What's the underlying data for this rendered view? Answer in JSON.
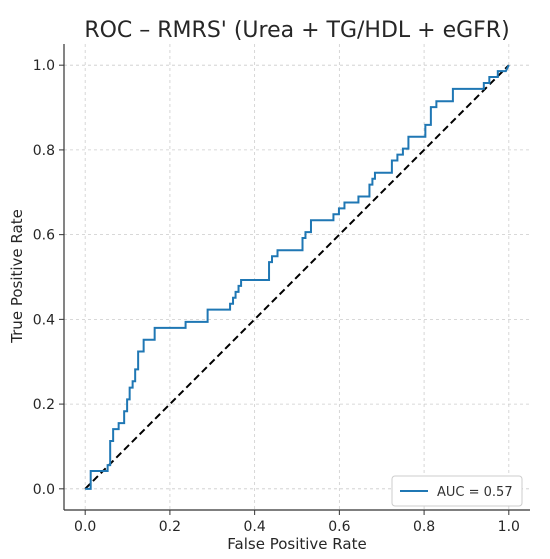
{
  "chart_data": {
    "type": "line",
    "title": "ROC – RMRS' (Urea + TG/HDL + eGFR)",
    "xlabel": "False Positive Rate",
    "ylabel": "True Positive Rate",
    "xlim": [
      -0.05,
      1.05
    ],
    "ylim": [
      -0.05,
      1.05
    ],
    "xticks": [
      "0.0",
      "0.2",
      "0.4",
      "0.6",
      "0.8",
      "1.0"
    ],
    "yticks": [
      "0.0",
      "0.2",
      "0.4",
      "0.6",
      "0.8",
      "1.0"
    ],
    "grid": true,
    "legend_position": "lower-right",
    "colors": {
      "roc": "#1f77b4",
      "diagonal": "#000000",
      "grid": "#cccccc"
    },
    "series": [
      {
        "name": "AUC = 0.57",
        "x": [
          0.0,
          0.0,
          0.013,
          0.013,
          0.053,
          0.053,
          0.059,
          0.059,
          0.066,
          0.066,
          0.079,
          0.079,
          0.092,
          0.092,
          0.099,
          0.099,
          0.105,
          0.105,
          0.112,
          0.112,
          0.118,
          0.118,
          0.125,
          0.125,
          0.138,
          0.138,
          0.164,
          0.164,
          0.171,
          0.171,
          0.237,
          0.237,
          0.289,
          0.289,
          0.342,
          0.342,
          0.349,
          0.349,
          0.355,
          0.355,
          0.362,
          0.362,
          0.368,
          0.368,
          0.382,
          0.382,
          0.434,
          0.434,
          0.441,
          0.441,
          0.454,
          0.454,
          0.513,
          0.513,
          0.52,
          0.52,
          0.533,
          0.533,
          0.586,
          0.586,
          0.599,
          0.599,
          0.612,
          0.612,
          0.645,
          0.645,
          0.671,
          0.671,
          0.678,
          0.678,
          0.684,
          0.684,
          0.724,
          0.724,
          0.737,
          0.737,
          0.75,
          0.75,
          0.763,
          0.763,
          0.803,
          0.803,
          0.816,
          0.816,
          0.829,
          0.829,
          0.868,
          0.868,
          0.941,
          0.941,
          0.954,
          0.954,
          0.974,
          0.974,
          0.993,
          0.993,
          1.0
        ],
        "y": [
          0.0,
          0.0,
          0.0,
          0.042,
          0.042,
          0.056,
          0.056,
          0.113,
          0.113,
          0.141,
          0.141,
          0.155,
          0.155,
          0.183,
          0.183,
          0.211,
          0.211,
          0.239,
          0.239,
          0.254,
          0.254,
          0.282,
          0.282,
          0.324,
          0.324,
          0.352,
          0.352,
          0.38,
          0.38,
          0.38,
          0.38,
          0.394,
          0.394,
          0.423,
          0.423,
          0.437,
          0.437,
          0.451,
          0.451,
          0.465,
          0.465,
          0.479,
          0.479,
          0.493,
          0.493,
          0.493,
          0.493,
          0.535,
          0.535,
          0.549,
          0.549,
          0.563,
          0.563,
          0.592,
          0.592,
          0.606,
          0.606,
          0.634,
          0.634,
          0.648,
          0.648,
          0.662,
          0.662,
          0.676,
          0.676,
          0.69,
          0.69,
          0.718,
          0.718,
          0.732,
          0.732,
          0.746,
          0.746,
          0.775,
          0.775,
          0.789,
          0.789,
          0.803,
          0.803,
          0.831,
          0.831,
          0.859,
          0.859,
          0.901,
          0.901,
          0.915,
          0.915,
          0.944,
          0.944,
          0.958,
          0.958,
          0.972,
          0.972,
          0.986,
          0.986,
          0.986,
          1.0
        ]
      },
      {
        "name": "",
        "x": [
          0.0,
          1.0
        ],
        "y": [
          0.0,
          1.0
        ]
      }
    ]
  }
}
